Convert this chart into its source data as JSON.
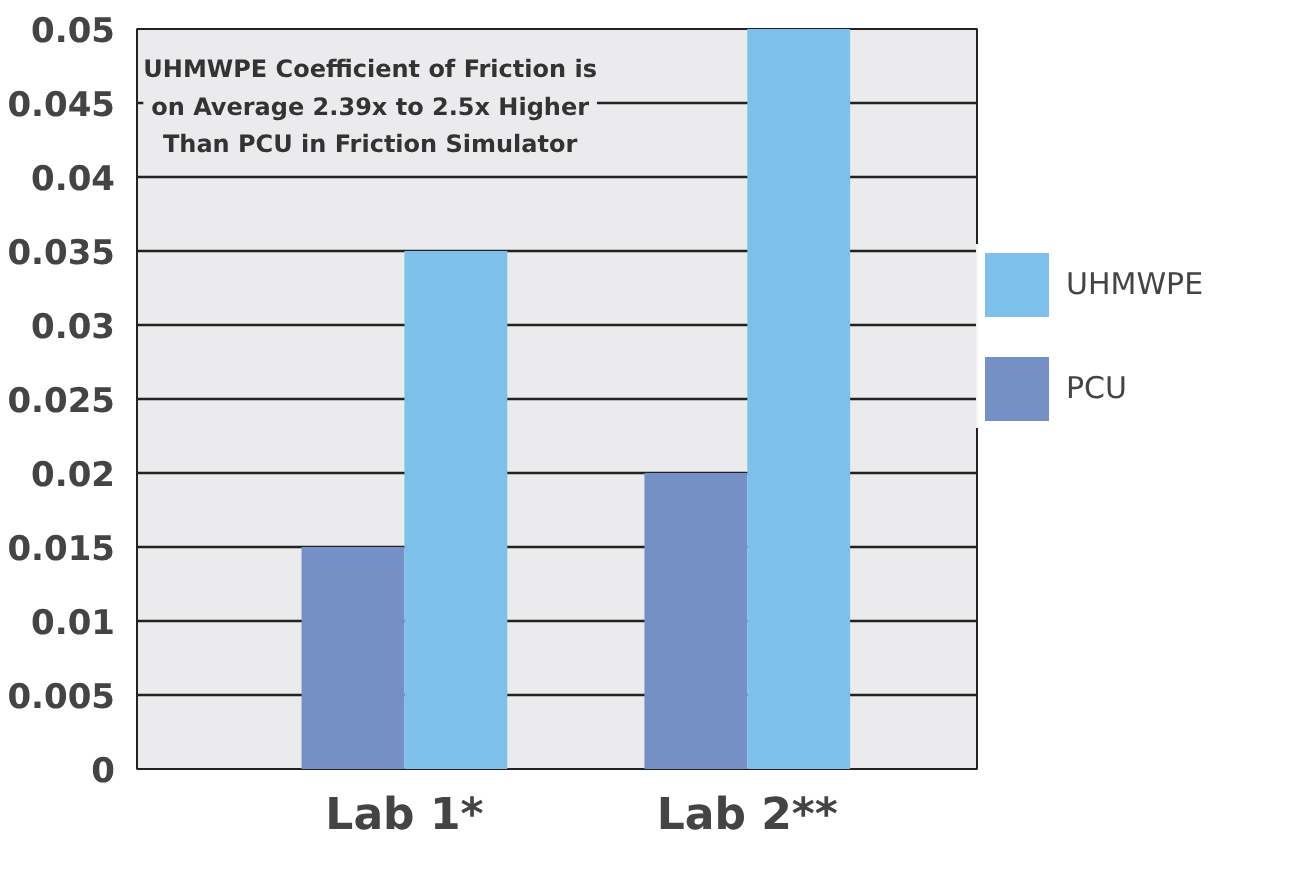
{
  "chart_data": {
    "type": "bar",
    "categories": [
      "Lab 1*",
      "Lab 2**"
    ],
    "series": [
      {
        "name": "PCU",
        "color": "#7490c4",
        "values": [
          0.015,
          0.02
        ]
      },
      {
        "name": "UHMWPE",
        "color": "#7dc1ea",
        "values": [
          0.035,
          0.05
        ]
      }
    ],
    "ylim": [
      0,
      0.05
    ],
    "yticks": [
      0,
      0.005,
      0.01,
      0.015,
      0.02,
      0.025,
      0.03,
      0.035,
      0.04,
      0.045,
      0.05
    ],
    "grid": "y",
    "legend": "right",
    "annotations": [
      "UHMWPE Coefficient of Friction is\non Average 2.39x to 2.5x Higher\nThan PCU in Friction Simulator"
    ]
  }
}
